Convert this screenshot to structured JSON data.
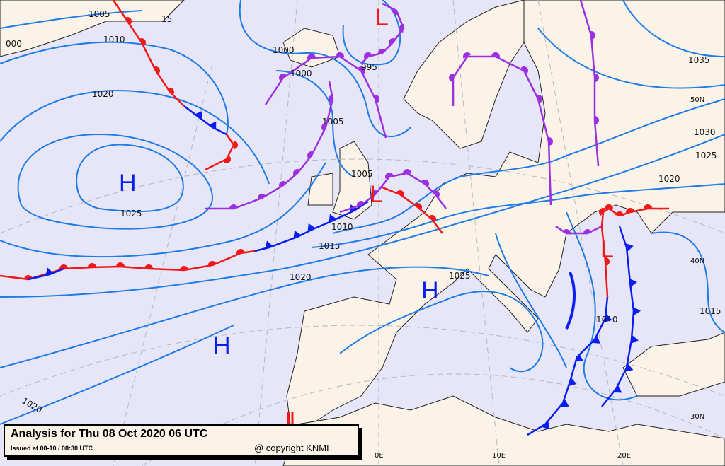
{
  "map": {
    "title": "Analysis for Thu 08 Oct 2020 06 UTC",
    "issued": "Issued at 08-10 / 08:30 UTC",
    "copyright": "@ copyright KNMI",
    "colors": {
      "sea": "#e6e6f8",
      "land": "#fbf2e8",
      "isobar": "#1e7be8",
      "cold_front": "#0a1ef0",
      "warm_front": "#f01818",
      "occluded_front": "#9b30e0"
    },
    "isobar_labels": [
      "1005",
      "1010",
      "1020",
      "1025",
      "1000",
      "1000",
      "995",
      "1005",
      "1005",
      "1010",
      "1015",
      "1020",
      "1025",
      "1035",
      "1030",
      "1025",
      "1020",
      "1010",
      "1015",
      "1020",
      "000",
      "15"
    ],
    "pressure_centers": [
      "H",
      "H",
      "H",
      "L",
      "L",
      "L",
      "L"
    ],
    "lat_labels": [
      "50N",
      "40N",
      "30N"
    ],
    "lon_labels": [
      "0E",
      "10E",
      "20E"
    ]
  }
}
